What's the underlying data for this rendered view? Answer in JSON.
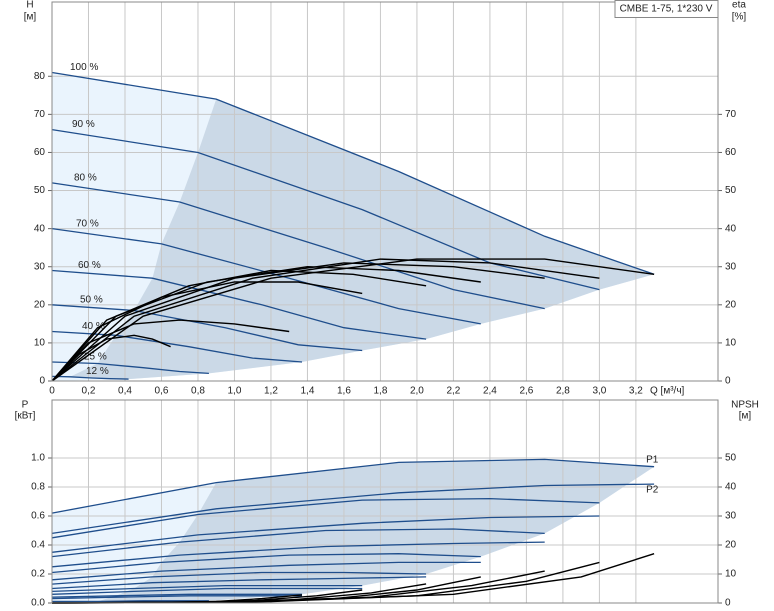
{
  "chart_data": [
    {
      "type": "line",
      "title": "CMBE 1-75, 1*230 V",
      "x_label": "Q [м³/ч]",
      "y_label": "H",
      "y_unit": "[м]",
      "y2_label": "eta",
      "y2_unit": "[%]",
      "xlim": [
        0,
        3.65
      ],
      "ylim": [
        0,
        99.5
      ],
      "y2lim": [
        0,
        99.5
      ],
      "grid": true,
      "label_at": "start",
      "fill_light": "#eaf4fd",
      "fill_dark": "#cbd9e7",
      "xticks": [
        0,
        {
          "value": 0.2,
          "label": "0,2"
        },
        {
          "value": 0.4,
          "label": "0,4"
        },
        {
          "value": 0.6,
          "label": "0,6"
        },
        {
          "value": 0.8,
          "label": "0,8"
        },
        {
          "value": 1.0,
          "label": "1,0"
        },
        {
          "value": 1.2,
          "label": "1,2"
        },
        {
          "value": 1.4,
          "label": "1,4"
        },
        {
          "value": 1.6,
          "label": "1,6"
        },
        {
          "value": 1.8,
          "label": "1,8"
        },
        {
          "value": 2.0,
          "label": "2,0"
        },
        {
          "value": 2.2,
          "label": "2,2"
        },
        {
          "value": 2.4,
          "label": "2,4"
        },
        {
          "value": 2.6,
          "label": "2,6"
        },
        {
          "value": 2.8,
          "label": "2,8"
        },
        {
          "value": 3.0,
          "label": "3,0"
        },
        {
          "value": 3.2,
          "label": "3,2"
        }
      ],
      "yticks": [
        0,
        10,
        20,
        30,
        40,
        50,
        60,
        70,
        80
      ],
      "y2ticks": [
        0,
        10,
        20,
        30,
        40,
        50,
        60,
        70
      ],
      "series": [
        {
          "name": "100 %",
          "color": "#1f4e8c",
          "x": [
            0,
            0.9,
            1.9,
            2.7,
            3.3
          ],
          "values": [
            81,
            74,
            55,
            38,
            28
          ]
        },
        {
          "name": "90 %",
          "color": "#1f4e8c",
          "x": [
            0,
            0.8,
            1.7,
            2.4,
            3.0
          ],
          "values": [
            66,
            60,
            45,
            31,
            24
          ]
        },
        {
          "name": "80 %",
          "color": "#1f4e8c",
          "x": [
            0,
            0.7,
            1.5,
            2.2,
            2.7
          ],
          "values": [
            52,
            47,
            35,
            24,
            19
          ]
        },
        {
          "name": "70 %",
          "color": "#1f4e8c",
          "x": [
            0,
            0.6,
            1.3,
            1.9,
            2.35
          ],
          "values": [
            40,
            36,
            27,
            19,
            15
          ]
        },
        {
          "name": "60 %",
          "color": "#1f4e8c",
          "x": [
            0,
            0.55,
            1.15,
            1.6,
            2.05
          ],
          "values": [
            29,
            27,
            20,
            14,
            11
          ]
        },
        {
          "name": "50 %",
          "color": "#1f4e8c",
          "x": [
            0,
            0.45,
            0.95,
            1.35,
            1.7
          ],
          "values": [
            20,
            18.5,
            14,
            9.5,
            8
          ]
        },
        {
          "name": "40 %",
          "color": "#1f4e8c",
          "x": [
            0,
            0.35,
            0.75,
            1.1,
            1.37
          ],
          "values": [
            13,
            12,
            9,
            6,
            5
          ]
        },
        {
          "name": "25 %",
          "color": "#1f4e8c",
          "x": [
            0,
            0.25,
            0.5,
            0.7,
            0.86
          ],
          "values": [
            5,
            4.6,
            3.5,
            2.5,
            2
          ]
        },
        {
          "name": "12 %",
          "color": "#1f4e8c",
          "x": [
            0,
            0.1,
            0.22,
            0.32,
            0.42
          ],
          "values": [
            1.2,
            1.1,
            0.8,
            0.6,
            0.5
          ]
        },
        {
          "color": "#000000",
          "axis": "y2",
          "x": [
            0,
            0.5,
            1.2,
            2.0,
            2.7,
            3.3
          ],
          "values": [
            0,
            17,
            27,
            32,
            32,
            28
          ]
        },
        {
          "color": "#000000",
          "axis": "y2",
          "x": [
            0,
            0.45,
            1.1,
            1.8,
            2.4,
            3.0
          ],
          "values": [
            0,
            17,
            27,
            32,
            31,
            27
          ]
        },
        {
          "color": "#000000",
          "axis": "y2",
          "x": [
            0,
            0.4,
            1.0,
            1.6,
            2.2,
            2.7
          ],
          "values": [
            0,
            17,
            27,
            31,
            30,
            27
          ]
        },
        {
          "color": "#000000",
          "axis": "y2",
          "x": [
            0,
            0.35,
            0.85,
            1.4,
            1.9,
            2.35
          ],
          "values": [
            0,
            17,
            26,
            30,
            29,
            26
          ]
        },
        {
          "color": "#000000",
          "axis": "y2",
          "x": [
            0,
            0.3,
            0.75,
            1.2,
            1.65,
            2.05
          ],
          "values": [
            0,
            16,
            25,
            29,
            28,
            25
          ]
        },
        {
          "color": "#000000",
          "axis": "y2",
          "x": [
            0,
            0.25,
            0.6,
            1.0,
            1.35,
            1.7
          ],
          "values": [
            0,
            14,
            22,
            26,
            26,
            23
          ]
        },
        {
          "color": "#000000",
          "axis": "y2",
          "x": [
            0,
            0.2,
            0.45,
            0.7,
            1.0,
            1.3
          ],
          "values": [
            0,
            10,
            15,
            16,
            15,
            13
          ]
        },
        {
          "color": "#000000",
          "axis": "y2",
          "x": [
            0,
            0.15,
            0.3,
            0.45,
            0.55,
            0.65
          ],
          "values": [
            0,
            7,
            11,
            12,
            11,
            9
          ]
        }
      ]
    },
    {
      "type": "line",
      "y_label": "P",
      "y_unit": "[кВт]",
      "y2_label": "NPSH",
      "y2_unit": "[м]",
      "xlim": [
        0,
        3.65
      ],
      "ylim": [
        0,
        1.4
      ],
      "y2lim": [
        0,
        70
      ],
      "grid": true,
      "label_at": "end",
      "fill_light": "#eaf4fd",
      "fill_dark": "#cbd9e7",
      "xticks": [
        0,
        0.2,
        0.4,
        0.6,
        0.8,
        1.0,
        1.2,
        1.4,
        1.6,
        1.8,
        2.0,
        2.2,
        2.4,
        2.6,
        2.8,
        3.0,
        3.2
      ],
      "yticks": [
        {
          "value": 0,
          "label": "0.0"
        },
        0.2,
        0.4,
        0.6,
        0.8,
        {
          "value": 1.0,
          "label": "1.0"
        }
      ],
      "y2ticks": [
        0,
        10,
        20,
        30,
        40,
        50
      ],
      "series": [
        {
          "name": "P1",
          "color": "#1f4e8c",
          "x": [
            0,
            0.9,
            1.9,
            2.7,
            3.3
          ],
          "values": [
            0.62,
            0.83,
            0.97,
            0.99,
            0.94
          ]
        },
        {
          "color": "#1f4e8c",
          "x": [
            0,
            0.8,
            1.7,
            2.4,
            3.0
          ],
          "values": [
            0.45,
            0.61,
            0.71,
            0.72,
            0.69
          ]
        },
        {
          "color": "#1f4e8c",
          "x": [
            0,
            0.7,
            1.5,
            2.2,
            2.7
          ],
          "values": [
            0.32,
            0.42,
            0.5,
            0.51,
            0.48
          ]
        },
        {
          "color": "#1f4e8c",
          "x": [
            0,
            0.6,
            1.3,
            1.9,
            2.35
          ],
          "values": [
            0.21,
            0.28,
            0.33,
            0.34,
            0.32
          ]
        },
        {
          "color": "#1f4e8c",
          "x": [
            0,
            0.55,
            1.15,
            1.6,
            2.05
          ],
          "values": [
            0.13,
            0.18,
            0.21,
            0.21,
            0.2
          ]
        },
        {
          "color": "#1f4e8c",
          "x": [
            0,
            0.45,
            0.95,
            1.35,
            1.7
          ],
          "values": [
            0.08,
            0.1,
            0.12,
            0.12,
            0.12
          ]
        },
        {
          "color": "#1f4e8c",
          "x": [
            0,
            0.35,
            0.75,
            1.1,
            1.37
          ],
          "values": [
            0.04,
            0.05,
            0.06,
            0.06,
            0.06
          ]
        },
        {
          "color": "#1f4e8c",
          "x": [
            0,
            0.25,
            0.5,
            0.7,
            0.86
          ],
          "values": [
            0.01,
            0.01,
            0.015,
            0.015,
            0.015
          ]
        },
        {
          "name": "P2",
          "color": "#1f4e8c",
          "x": [
            0,
            0.9,
            1.9,
            2.7,
            3.3
          ],
          "values": [
            0.48,
            0.65,
            0.76,
            0.81,
            0.82
          ]
        },
        {
          "color": "#1f4e8c",
          "x": [
            0,
            0.8,
            1.7,
            2.4,
            3.0
          ],
          "values": [
            0.35,
            0.47,
            0.55,
            0.59,
            0.6
          ]
        },
        {
          "color": "#1f4e8c",
          "x": [
            0,
            0.7,
            1.5,
            2.2,
            2.7
          ],
          "values": [
            0.25,
            0.33,
            0.39,
            0.41,
            0.42
          ]
        },
        {
          "color": "#1f4e8c",
          "x": [
            0,
            0.6,
            1.3,
            1.9,
            2.35
          ],
          "values": [
            0.16,
            0.22,
            0.26,
            0.28,
            0.28
          ]
        },
        {
          "color": "#1f4e8c",
          "x": [
            0,
            0.55,
            1.15,
            1.6,
            2.05
          ],
          "values": [
            0.1,
            0.14,
            0.16,
            0.17,
            0.18
          ]
        },
        {
          "color": "#1f4e8c",
          "x": [
            0,
            0.45,
            0.95,
            1.35,
            1.7
          ],
          "values": [
            0.06,
            0.08,
            0.1,
            0.1,
            0.1
          ]
        },
        {
          "color": "#1f4e8c",
          "x": [
            0,
            0.35,
            0.75,
            1.1,
            1.37
          ],
          "values": [
            0.03,
            0.04,
            0.05,
            0.05,
            0.05
          ]
        },
        {
          "color": "#1f4e8c",
          "x": [
            0,
            0.25,
            0.5,
            0.7,
            0.86
          ],
          "values": [
            0.01,
            0.01,
            0.01,
            0.01,
            0.01
          ]
        },
        {
          "color": "#000000",
          "axis": "y2",
          "x": [
            0,
            1.2,
            2.2,
            2.9,
            3.3
          ],
          "values": [
            0,
            0.5,
            3,
            9,
            17
          ]
        },
        {
          "color": "#000000",
          "axis": "y2",
          "x": [
            0,
            1.1,
            2.0,
            2.6,
            3.0
          ],
          "values": [
            0,
            0.4,
            2.5,
            7.5,
            14
          ]
        },
        {
          "color": "#000000",
          "axis": "y2",
          "x": [
            0,
            1.0,
            1.75,
            2.3,
            2.7
          ],
          "values": [
            0,
            0.3,
            2,
            6,
            11
          ]
        },
        {
          "color": "#000000",
          "axis": "y2",
          "x": [
            0,
            0.85,
            1.55,
            2.0,
            2.35
          ],
          "values": [
            0,
            0.3,
            1.5,
            4.5,
            9
          ]
        },
        {
          "color": "#000000",
          "axis": "y2",
          "x": [
            0,
            0.75,
            1.3,
            1.75,
            2.05
          ],
          "values": [
            0,
            0.2,
            1,
            3.5,
            6.6
          ]
        },
        {
          "color": "#000000",
          "axis": "y2",
          "x": [
            0,
            0.6,
            1.1,
            1.45,
            1.7
          ],
          "values": [
            0,
            0.1,
            0.8,
            2.5,
            4.5
          ]
        },
        {
          "color": "#000000",
          "axis": "y2",
          "x": [
            0,
            0.5,
            0.9,
            1.15,
            1.37
          ],
          "values": [
            0,
            0.1,
            0.5,
            1.5,
            2.8
          ]
        }
      ]
    }
  ]
}
